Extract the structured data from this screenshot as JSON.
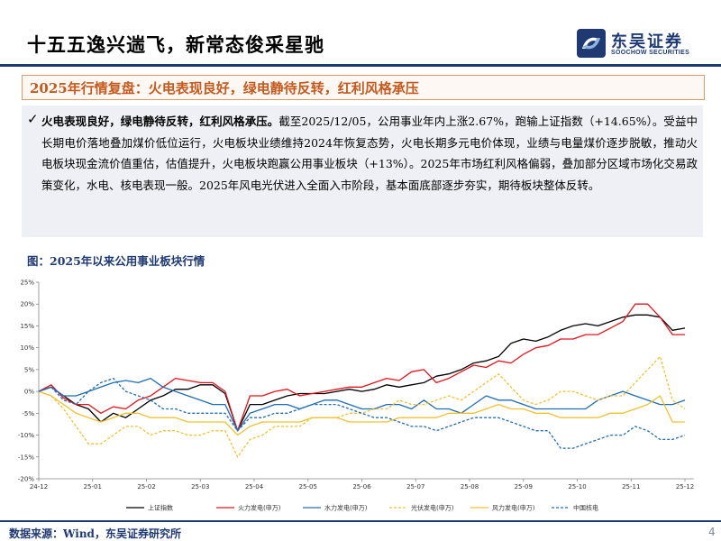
{
  "header": {
    "title": "十五五逸兴遄飞，新常态俊采星驰",
    "logo_cn": "东吴证券",
    "logo_en": "SOOCHOW SECURITIES"
  },
  "section": {
    "title": "2025年行情复盘：火电表现良好，绿电静待反转，红利风格承压"
  },
  "bullet": {
    "check": "✓",
    "lead": "火电表现良好，绿电静待反转，红利风格承压。",
    "text": "截至2025/12/05，公用事业年内上涨2.67%，跑输上证指数（+14.65%）。受益中长期电价落地叠加煤价低位运行，火电板块业绩维持2024年恢复态势，火电长期多元电价体现，业绩与电量煤价逐步脱敏，推动火电板块现金流价值重估，估值提升，火电板块跑赢公用事业板块（+13%）。2025年市场红利风格偏弱，叠加部分区域市场化交易政策变化，水电、核电表现一般。2025年风电光伏进入全面入市阶段，基本面底部逐步夯实，期待板块整体反转。"
  },
  "figure": {
    "title": "图：2025年以来公用事业板块行情"
  },
  "chart_data": {
    "type": "line",
    "title": "",
    "xlabel": "",
    "ylabel": "",
    "x_ticks": [
      "24-12",
      "25-01",
      "25-02",
      "25-03",
      "25-04",
      "25-05",
      "25-06",
      "25-07",
      "25-08",
      "25-09",
      "25-10",
      "25-11",
      "25-12"
    ],
    "y_ticks": [
      "-20%",
      "-15%",
      "-10%",
      "-5%",
      "0%",
      "5%",
      "10%",
      "15%",
      "20%",
      "25%"
    ],
    "ylim": [
      -20,
      25
    ],
    "grid": false,
    "legend_position": "bottom",
    "series": [
      {
        "name": "上证指数",
        "color": "#000000",
        "dash": false,
        "values": [
          0,
          1,
          -1,
          -3,
          -4,
          -7,
          -5,
          -6,
          -4,
          -2,
          -1,
          0.5,
          0.5,
          1.5,
          1.5,
          -0.5,
          -9,
          -3,
          -3,
          -2,
          -1,
          -0.5,
          -0.5,
          -0.5,
          0,
          0.5,
          0,
          0.5,
          1.5,
          1,
          1.5,
          2,
          3.5,
          4,
          5,
          6.5,
          7,
          8,
          11,
          12,
          11.5,
          12.5,
          14,
          15,
          15.5,
          15,
          16,
          17,
          17.5,
          17.5,
          17,
          14,
          14.5
        ]
      },
      {
        "name": "火力发电(申万)",
        "color": "#e0141c",
        "dash": false,
        "values": [
          0,
          1.5,
          -1.5,
          -3,
          -3,
          -5,
          -3.5,
          -4,
          -2,
          -1,
          1,
          3,
          2.5,
          2,
          2,
          0,
          -9,
          -1,
          -1,
          0,
          0.5,
          -1,
          -0.5,
          0,
          0.5,
          1,
          1,
          2,
          3,
          2.5,
          4.5,
          5,
          2,
          3,
          4.5,
          6,
          5.5,
          7,
          6.5,
          8.5,
          10,
          10.5,
          12,
          12,
          13,
          13,
          14.5,
          16,
          20,
          20,
          17,
          13,
          13
        ]
      },
      {
        "name": "水力发电(申万)",
        "color": "#1f6db3",
        "dash": false,
        "values": [
          0,
          1,
          -1,
          -1,
          0,
          1,
          2,
          2.5,
          2,
          3,
          1,
          0,
          -1,
          -2,
          -3,
          -3,
          -9,
          -5,
          -4,
          -3,
          -3,
          -4,
          -3,
          -2,
          -2,
          -3,
          -4,
          -4,
          -3,
          -3,
          -4,
          -2,
          -4,
          -4,
          -5,
          -3,
          -1,
          -2,
          -2,
          -3,
          -4,
          -4,
          -4,
          -4,
          -4,
          -2,
          -1,
          0,
          -1,
          -2,
          -3,
          -3,
          -2
        ]
      },
      {
        "name": "光伏发电(申万)",
        "color": "#f2c12e",
        "dash": true,
        "values": [
          0,
          -1,
          -4,
          -8,
          -12,
          -12,
          -10,
          -8,
          -8,
          -10,
          -9,
          -9,
          -10,
          -10,
          -9,
          -9,
          -15,
          -11,
          -10,
          -8,
          -8,
          -8,
          -6,
          -6,
          -6,
          -5,
          -5,
          -4,
          -4,
          -2,
          -3,
          -3,
          -2,
          -1,
          -2,
          0,
          2,
          4,
          1,
          -2,
          -3,
          -2,
          0,
          0,
          -1,
          -2,
          -1,
          -1,
          2,
          5,
          8,
          -2,
          -4
        ]
      },
      {
        "name": "风力发电(申万)",
        "color": "#f2c12e",
        "dash": false,
        "values": [
          0,
          -1,
          -3,
          -5,
          -6,
          -7,
          -6,
          -5,
          -5,
          -6,
          -6,
          -6,
          -7,
          -7,
          -7,
          -7,
          -10,
          -8,
          -7,
          -7,
          -7,
          -7,
          -6,
          -6,
          -6,
          -7,
          -7,
          -7,
          -7,
          -6,
          -6,
          -6,
          -6,
          -5,
          -5,
          -5,
          -4,
          -3,
          -4,
          -4,
          -5,
          -5,
          -6,
          -6,
          -6,
          -6,
          -5,
          -5,
          -4,
          -3,
          -1,
          -7,
          -7
        ]
      },
      {
        "name": "中国核电",
        "color": "#1f6db3",
        "dash": true,
        "values": [
          0,
          1,
          -2,
          -3,
          0,
          2,
          3,
          0,
          -1,
          -2,
          -4,
          -4,
          -5,
          -5,
          -5,
          -5,
          -9,
          -6,
          -6,
          -5,
          -5,
          -4,
          -3,
          -3,
          -3,
          -4,
          -5,
          -6,
          -6,
          -7,
          -8,
          -8,
          -9,
          -8,
          -7,
          -6,
          -6,
          -6,
          -7,
          -8,
          -9,
          -9,
          -13,
          -13,
          -12,
          -11,
          -10,
          -10,
          -8,
          -9,
          -11,
          -11,
          -10
        ]
      }
    ]
  },
  "footer": {
    "source": "数据来源：Wind，东吴证券研究所",
    "page": "4"
  }
}
